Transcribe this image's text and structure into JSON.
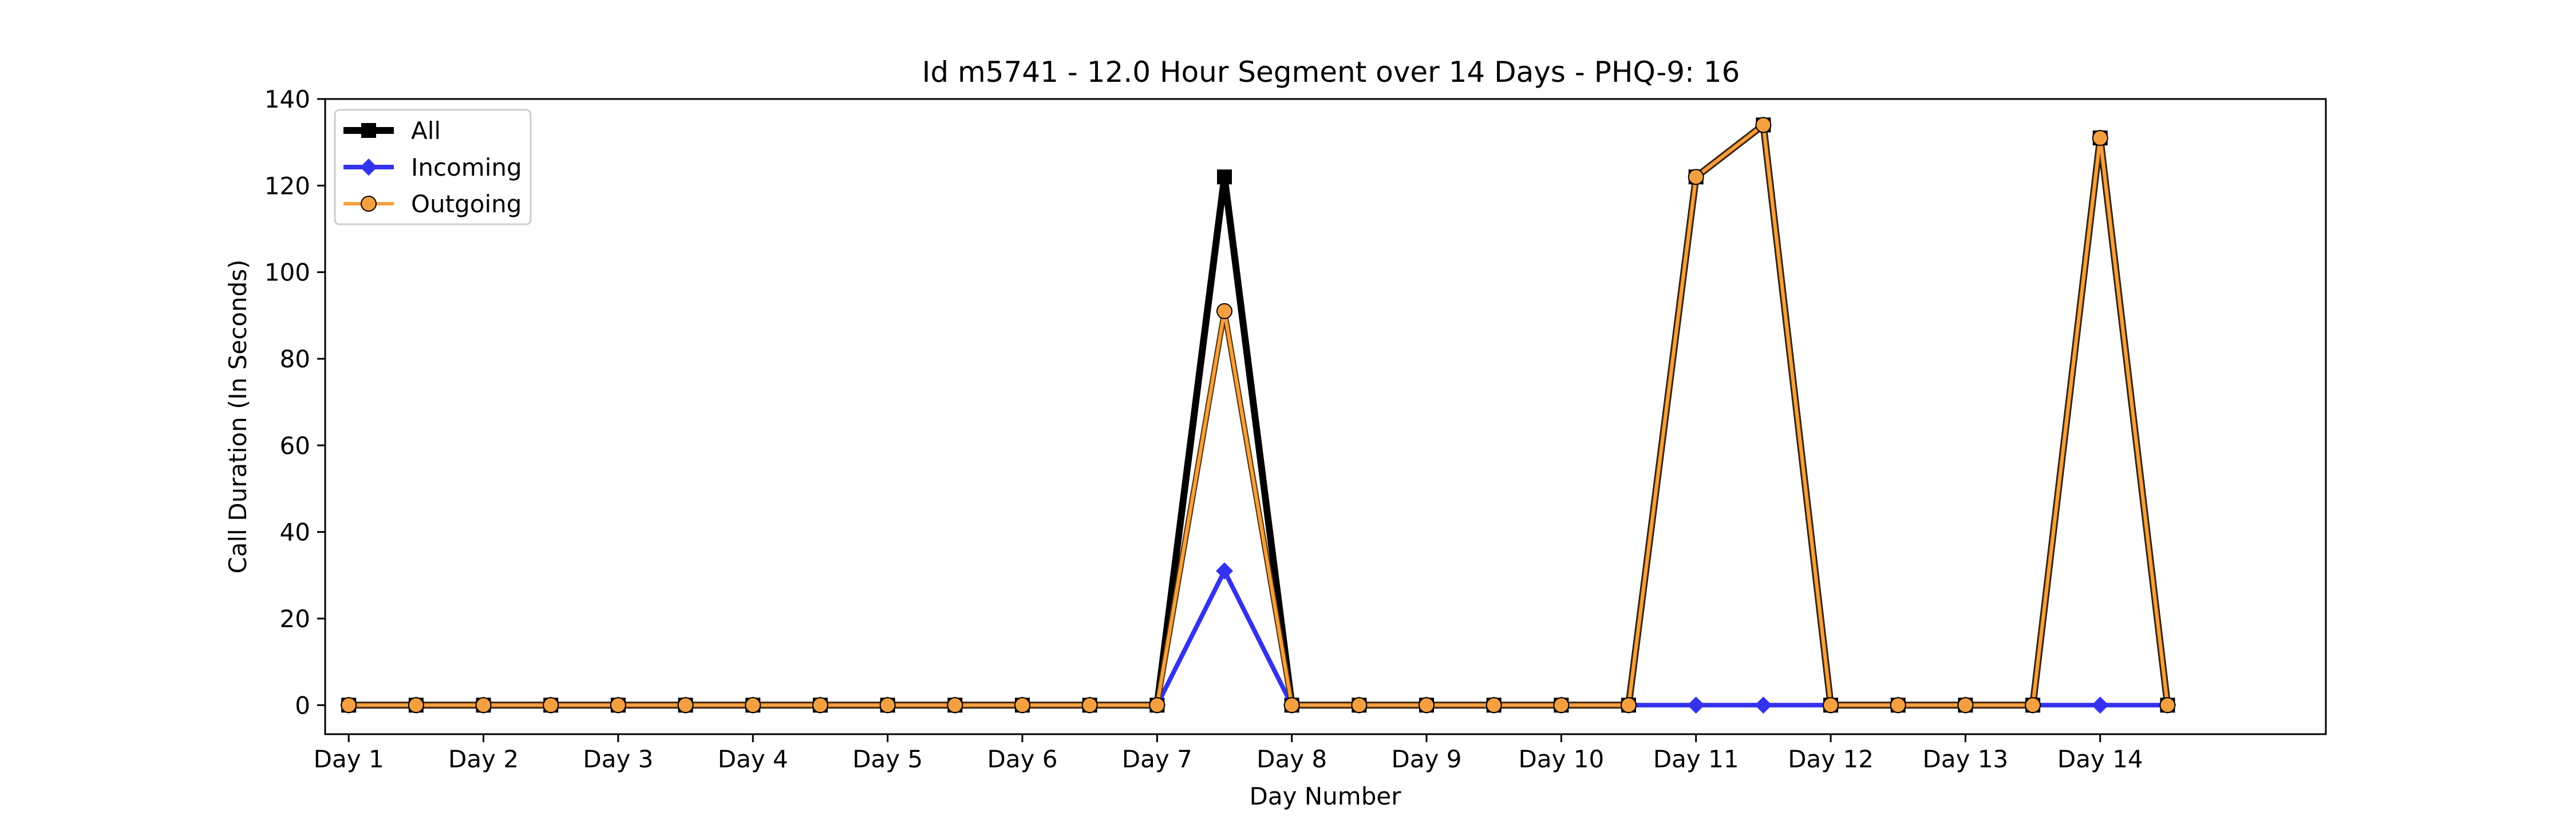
{
  "chart_data": {
    "type": "line",
    "title": "Id m5741 - 12.0 Hour Segment over 14 Days - PHQ-9: 16",
    "xlabel": "Day Number",
    "ylabel": "Call Duration (In Seconds)",
    "x_tick_labels": [
      "Day 1",
      "Day 2",
      "Day 3",
      "Day 4",
      "Day 5",
      "Day 6",
      "Day 7",
      "Day 8",
      "Day 9",
      "Day 10",
      "Day 11",
      "Day 12",
      "Day 13",
      "Day 14"
    ],
    "y_ticks": [
      0,
      20,
      40,
      60,
      80,
      100,
      120,
      140
    ],
    "ylim": [
      -6.7,
      140
    ],
    "xlim": [
      0.825,
      15.675
    ],
    "grid": false,
    "legend_position": "top-left",
    "x": [
      1,
      1.5,
      2,
      2.5,
      3,
      3.5,
      4,
      4.5,
      5,
      5.5,
      6,
      6.5,
      7,
      7.5,
      8,
      8.5,
      9,
      9.5,
      10,
      10.5,
      11,
      11.5,
      12,
      12.5,
      13,
      13.5,
      14,
      14.5
    ],
    "series": [
      {
        "name": "All",
        "color": "#000000",
        "marker": "square",
        "values": [
          0,
          0,
          0,
          0,
          0,
          0,
          0,
          0,
          0,
          0,
          0,
          0,
          0,
          122,
          0,
          0,
          0,
          0,
          0,
          0,
          122,
          134,
          0,
          0,
          0,
          0,
          131,
          0
        ]
      },
      {
        "name": "Incoming",
        "color": "#3333ee",
        "marker": "diamond",
        "values": [
          0,
          0,
          0,
          0,
          0,
          0,
          0,
          0,
          0,
          0,
          0,
          0,
          0,
          31,
          0,
          0,
          0,
          0,
          0,
          0,
          0,
          0,
          0,
          0,
          0,
          0,
          0,
          0
        ]
      },
      {
        "name": "Outgoing",
        "color": "#f5a040",
        "marker": "circle",
        "values": [
          0,
          0,
          0,
          0,
          0,
          0,
          0,
          0,
          0,
          0,
          0,
          0,
          0,
          91,
          0,
          0,
          0,
          0,
          0,
          0,
          122,
          134,
          0,
          0,
          0,
          0,
          131,
          0
        ]
      }
    ]
  }
}
